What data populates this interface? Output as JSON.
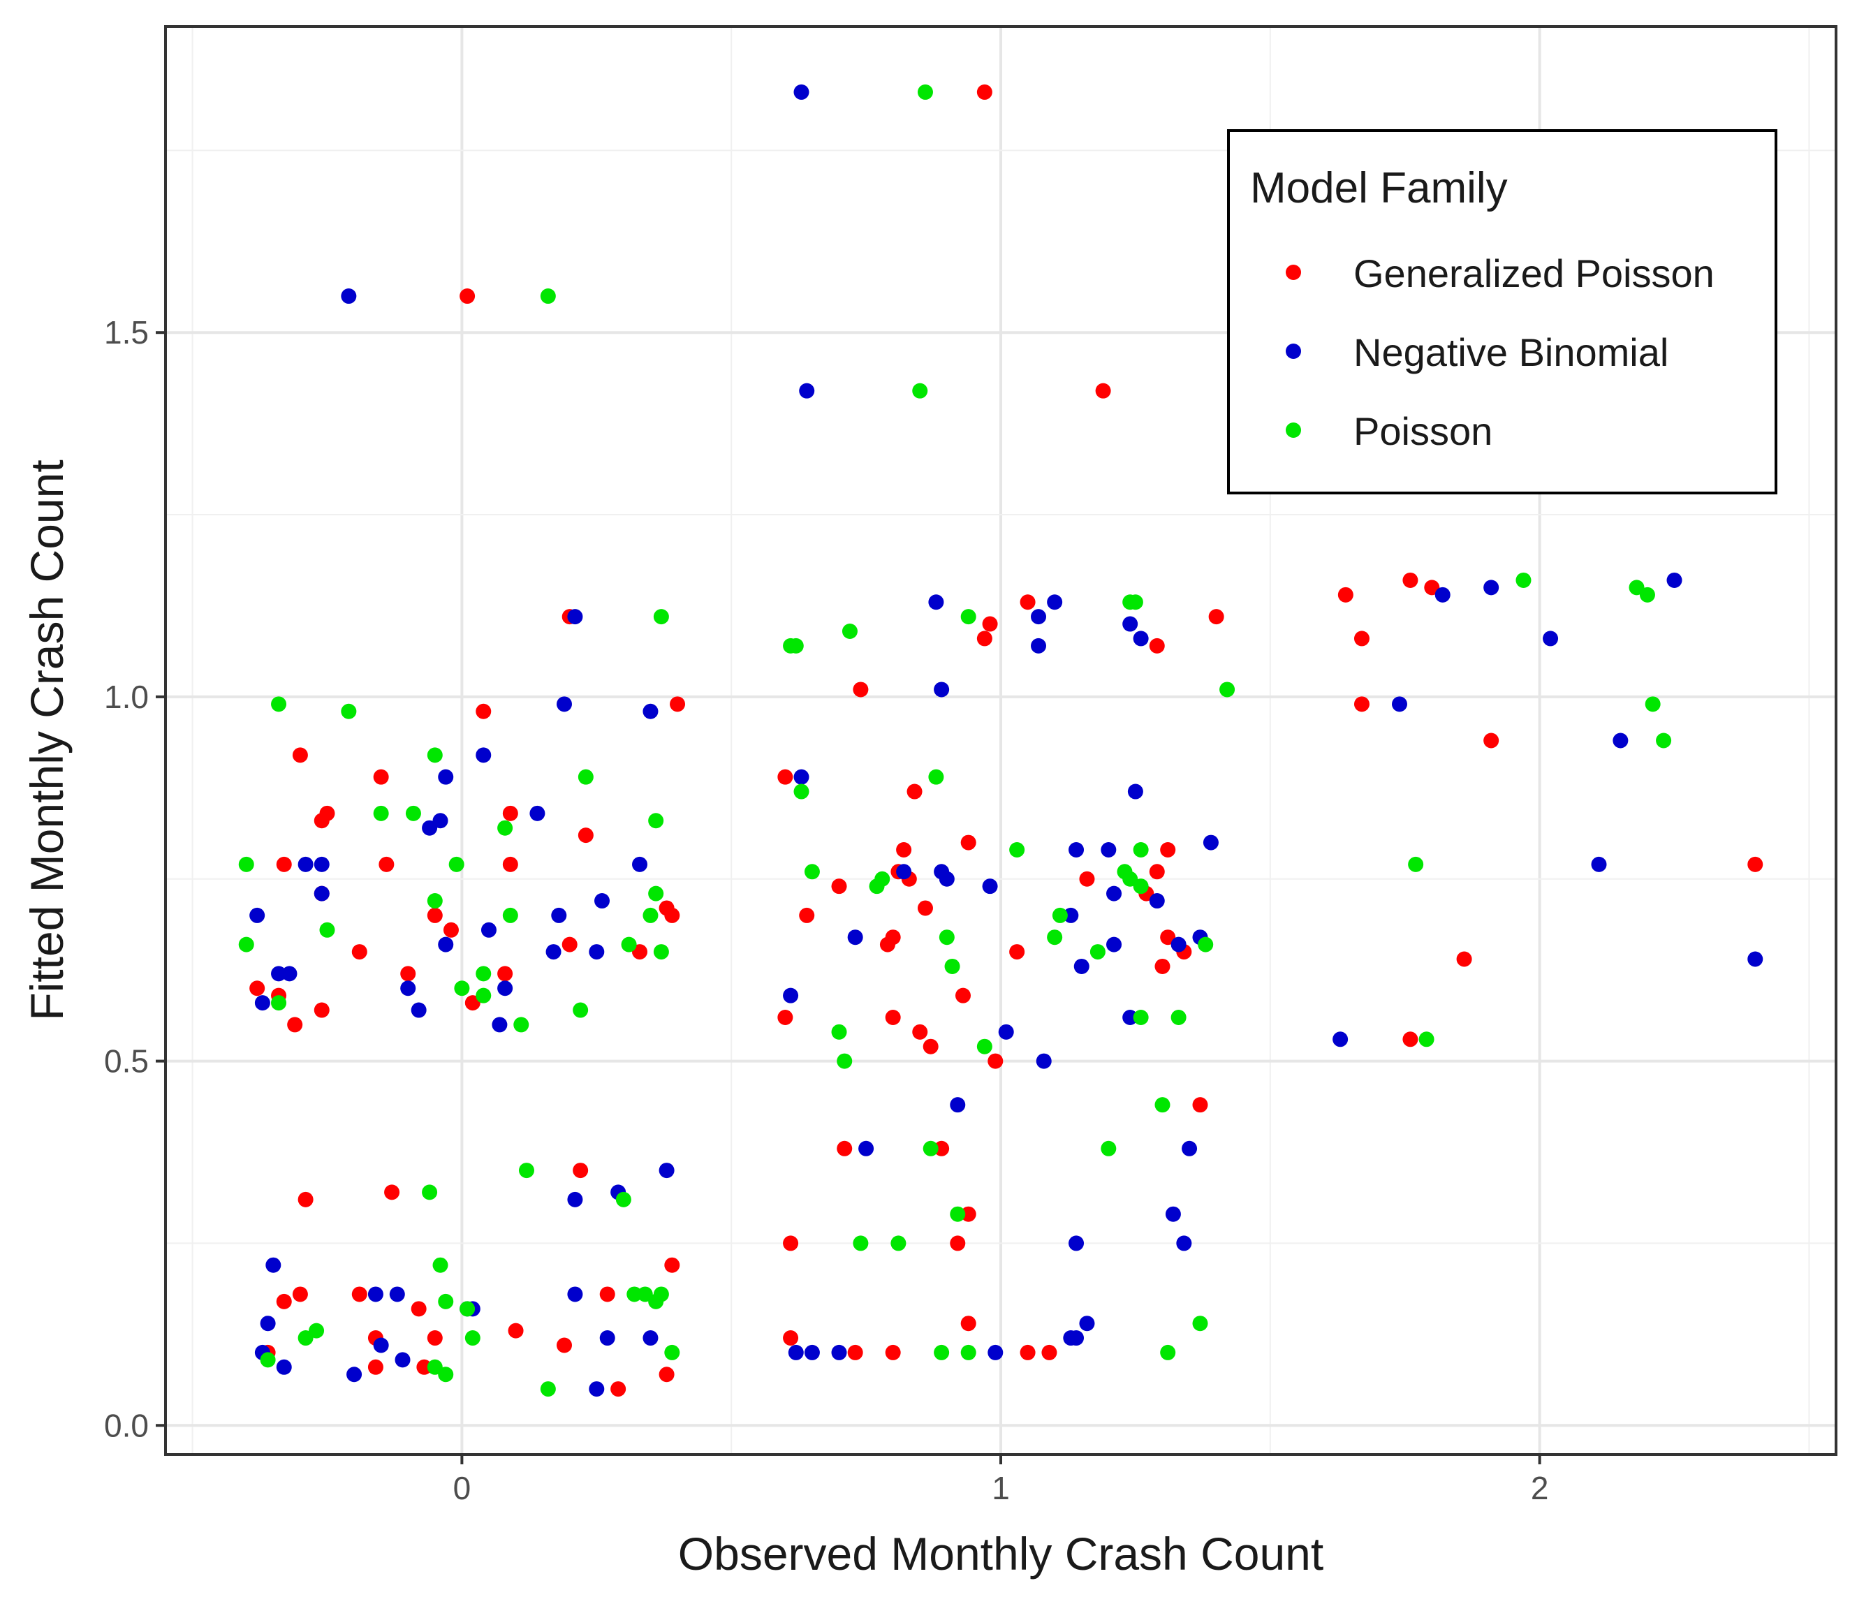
{
  "chart_data": {
    "type": "scatter",
    "title": "",
    "xlabel": "Observed Monthly Crash Count",
    "ylabel": "Fitted Monthly Crash Count",
    "xlim": [
      -0.55,
      2.55
    ],
    "ylim": [
      -0.04,
      1.92
    ],
    "x_ticks": [
      0,
      1,
      2
    ],
    "y_ticks": [
      0.0,
      0.5,
      1.0,
      1.5
    ],
    "x_tick_labels": [
      "0",
      "1",
      "2"
    ],
    "y_tick_labels": [
      "0.0",
      "0.5",
      "1.0",
      "1.5"
    ],
    "grid": true,
    "legend": {
      "title": "Model Family",
      "position": "top-right",
      "entries": [
        "Generalized Poisson",
        "Negative Binomial",
        "Poisson"
      ]
    },
    "series": [
      {
        "name": "Generalized Poisson",
        "color": "#ff0000",
        "points": [
          [
            0.01,
            1.55
          ],
          [
            0.97,
            1.83
          ],
          [
            1.19,
            1.42
          ],
          [
            0.2,
            1.11
          ],
          [
            0.04,
            0.98
          ],
          [
            0.4,
            0.99
          ],
          [
            -0.3,
            0.92
          ],
          [
            -0.15,
            0.89
          ],
          [
            -0.25,
            0.84
          ],
          [
            -0.26,
            0.83
          ],
          [
            0.09,
            0.84
          ],
          [
            0.23,
            0.81
          ],
          [
            -0.33,
            0.77
          ],
          [
            -0.14,
            0.77
          ],
          [
            0.09,
            0.77
          ],
          [
            -0.26,
            0.73
          ],
          [
            -0.05,
            0.7
          ],
          [
            0.39,
            0.7
          ],
          [
            0.2,
            0.66
          ],
          [
            0.33,
            0.65
          ],
          [
            -0.19,
            0.65
          ],
          [
            -0.1,
            0.62
          ],
          [
            0.08,
            0.62
          ],
          [
            -0.38,
            0.6
          ],
          [
            -0.34,
            0.59
          ],
          [
            0.02,
            0.58
          ],
          [
            -0.26,
            0.57
          ],
          [
            -0.31,
            0.55
          ],
          [
            -0.02,
            0.68
          ],
          [
            0.38,
            0.71
          ],
          [
            -0.29,
            0.31
          ],
          [
            -0.13,
            0.32
          ],
          [
            0.22,
            0.35
          ],
          [
            -0.3,
            0.18
          ],
          [
            -0.19,
            0.18
          ],
          [
            0.27,
            0.18
          ],
          [
            -0.33,
            0.17
          ],
          [
            -0.08,
            0.16
          ],
          [
            0.1,
            0.13
          ],
          [
            -0.05,
            0.12
          ],
          [
            0.19,
            0.11
          ],
          [
            -0.16,
            0.12
          ],
          [
            -0.36,
            0.1
          ],
          [
            -0.16,
            0.08
          ],
          [
            -0.07,
            0.08
          ],
          [
            0.29,
            0.05
          ],
          [
            0.38,
            0.07
          ],
          [
            0.39,
            0.22
          ],
          [
            1.05,
            1.13
          ],
          [
            1.4,
            1.11
          ],
          [
            0.98,
            1.1
          ],
          [
            0.97,
            1.08
          ],
          [
            1.29,
            1.07
          ],
          [
            0.74,
            1.01
          ],
          [
            0.6,
            0.89
          ],
          [
            0.84,
            0.87
          ],
          [
            0.82,
            0.79
          ],
          [
            0.94,
            0.8
          ],
          [
            1.31,
            0.79
          ],
          [
            0.83,
            0.75
          ],
          [
            0.81,
            0.76
          ],
          [
            1.16,
            0.75
          ],
          [
            1.29,
            0.76
          ],
          [
            0.7,
            0.74
          ],
          [
            1.27,
            0.73
          ],
          [
            0.86,
            0.71
          ],
          [
            0.64,
            0.7
          ],
          [
            0.8,
            0.67
          ],
          [
            0.79,
            0.66
          ],
          [
            1.03,
            0.65
          ],
          [
            1.34,
            0.65
          ],
          [
            1.31,
            0.67
          ],
          [
            1.3,
            0.63
          ],
          [
            0.93,
            0.59
          ],
          [
            0.6,
            0.56
          ],
          [
            0.8,
            0.56
          ],
          [
            0.85,
            0.54
          ],
          [
            0.87,
            0.52
          ],
          [
            0.99,
            0.5
          ],
          [
            1.37,
            0.44
          ],
          [
            0.71,
            0.38
          ],
          [
            0.89,
            0.38
          ],
          [
            0.94,
            0.29
          ],
          [
            0.61,
            0.25
          ],
          [
            0.92,
            0.25
          ],
          [
            0.94,
            0.14
          ],
          [
            0.61,
            0.12
          ],
          [
            0.73,
            0.1
          ],
          [
            0.8,
            0.1
          ],
          [
            1.05,
            0.1
          ],
          [
            1.09,
            0.1
          ],
          [
            1.64,
            1.14
          ],
          [
            1.76,
            1.16
          ],
          [
            1.8,
            1.15
          ],
          [
            1.67,
            1.08
          ],
          [
            1.67,
            0.99
          ],
          [
            1.91,
            0.94
          ],
          [
            1.76,
            0.53
          ],
          [
            2.4,
            0.77
          ],
          [
            1.86,
            0.64
          ]
        ]
      },
      {
        "name": "Negative Binomial",
        "color": "#0000cc",
        "points": [
          [
            -0.21,
            1.55
          ],
          [
            0.63,
            1.83
          ],
          [
            0.64,
            1.42
          ],
          [
            0.21,
            1.11
          ],
          [
            0.19,
            0.99
          ],
          [
            0.35,
            0.98
          ],
          [
            0.04,
            0.92
          ],
          [
            -0.03,
            0.89
          ],
          [
            0.14,
            0.84
          ],
          [
            -0.04,
            0.83
          ],
          [
            -0.06,
            0.82
          ],
          [
            -0.26,
            0.77
          ],
          [
            -0.29,
            0.77
          ],
          [
            0.33,
            0.77
          ],
          [
            -0.26,
            0.73
          ],
          [
            0.26,
            0.72
          ],
          [
            -0.38,
            0.7
          ],
          [
            0.18,
            0.7
          ],
          [
            0.05,
            0.68
          ],
          [
            -0.03,
            0.66
          ],
          [
            0.17,
            0.65
          ],
          [
            0.25,
            0.65
          ],
          [
            -0.34,
            0.62
          ],
          [
            -0.32,
            0.62
          ],
          [
            -0.1,
            0.6
          ],
          [
            0.08,
            0.6
          ],
          [
            -0.37,
            0.58
          ],
          [
            -0.08,
            0.57
          ],
          [
            0.07,
            0.55
          ],
          [
            0.29,
            0.32
          ],
          [
            0.21,
            0.31
          ],
          [
            0.38,
            0.35
          ],
          [
            -0.35,
            0.22
          ],
          [
            -0.16,
            0.18
          ],
          [
            -0.12,
            0.18
          ],
          [
            0.21,
            0.18
          ],
          [
            0.01,
            0.16
          ],
          [
            0.02,
            0.16
          ],
          [
            -0.36,
            0.14
          ],
          [
            0.27,
            0.12
          ],
          [
            -0.15,
            0.11
          ],
          [
            0.35,
            0.12
          ],
          [
            -0.37,
            0.1
          ],
          [
            -0.11,
            0.09
          ],
          [
            -0.2,
            0.07
          ],
          [
            0.25,
            0.05
          ],
          [
            -0.33,
            0.08
          ],
          [
            0.88,
            1.13
          ],
          [
            1.1,
            1.13
          ],
          [
            1.07,
            1.11
          ],
          [
            1.24,
            1.1
          ],
          [
            1.26,
            1.08
          ],
          [
            1.07,
            1.07
          ],
          [
            0.89,
            1.01
          ],
          [
            0.63,
            0.89
          ],
          [
            1.25,
            0.87
          ],
          [
            1.39,
            0.8
          ],
          [
            1.14,
            0.79
          ],
          [
            1.2,
            0.79
          ],
          [
            0.82,
            0.76
          ],
          [
            0.89,
            0.76
          ],
          [
            0.9,
            0.75
          ],
          [
            0.98,
            0.74
          ],
          [
            1.21,
            0.73
          ],
          [
            1.29,
            0.72
          ],
          [
            1.13,
            0.7
          ],
          [
            0.73,
            0.67
          ],
          [
            1.21,
            0.66
          ],
          [
            1.33,
            0.66
          ],
          [
            1.37,
            0.67
          ],
          [
            1.15,
            0.63
          ],
          [
            0.61,
            0.59
          ],
          [
            1.24,
            0.56
          ],
          [
            1.01,
            0.54
          ],
          [
            1.08,
            0.5
          ],
          [
            0.92,
            0.44
          ],
          [
            0.75,
            0.38
          ],
          [
            1.35,
            0.38
          ],
          [
            1.32,
            0.29
          ],
          [
            1.14,
            0.25
          ],
          [
            1.34,
            0.25
          ],
          [
            0.62,
            0.1
          ],
          [
            0.65,
            0.1
          ],
          [
            0.7,
            0.1
          ],
          [
            0.99,
            0.1
          ],
          [
            1.14,
            0.12
          ],
          [
            1.16,
            0.14
          ],
          [
            1.13,
            0.12
          ],
          [
            1.82,
            1.14
          ],
          [
            1.91,
            1.15
          ],
          [
            2.25,
            1.16
          ],
          [
            2.02,
            1.08
          ],
          [
            1.74,
            0.99
          ],
          [
            2.15,
            0.94
          ],
          [
            2.11,
            0.77
          ],
          [
            1.63,
            0.53
          ],
          [
            2.4,
            0.64
          ]
        ]
      },
      {
        "name": "Poisson",
        "color": "#00e600",
        "points": [
          [
            0.16,
            1.55
          ],
          [
            0.86,
            1.83
          ],
          [
            0.85,
            1.42
          ],
          [
            0.37,
            1.11
          ],
          [
            -0.34,
            0.99
          ],
          [
            -0.21,
            0.98
          ],
          [
            -0.05,
            0.92
          ],
          [
            0.23,
            0.89
          ],
          [
            -0.15,
            0.84
          ],
          [
            -0.09,
            0.84
          ],
          [
            0.36,
            0.83
          ],
          [
            0.08,
            0.82
          ],
          [
            -0.4,
            0.77
          ],
          [
            -0.01,
            0.77
          ],
          [
            0.36,
            0.73
          ],
          [
            -0.05,
            0.72
          ],
          [
            -0.25,
            0.68
          ],
          [
            0.09,
            0.7
          ],
          [
            0.35,
            0.7
          ],
          [
            0.31,
            0.66
          ],
          [
            0.37,
            0.65
          ],
          [
            -0.4,
            0.66
          ],
          [
            0.04,
            0.62
          ],
          [
            0.04,
            0.59
          ],
          [
            -0.34,
            0.58
          ],
          [
            0.0,
            0.6
          ],
          [
            0.11,
            0.55
          ],
          [
            0.22,
            0.57
          ],
          [
            -0.06,
            0.32
          ],
          [
            0.12,
            0.35
          ],
          [
            0.3,
            0.31
          ],
          [
            -0.04,
            0.22
          ],
          [
            -0.03,
            0.17
          ],
          [
            0.34,
            0.18
          ],
          [
            0.37,
            0.18
          ],
          [
            0.36,
            0.17
          ],
          [
            0.01,
            0.16
          ],
          [
            -0.27,
            0.13
          ],
          [
            -0.29,
            0.12
          ],
          [
            0.02,
            0.12
          ],
          [
            0.39,
            0.1
          ],
          [
            -0.36,
            0.09
          ],
          [
            -0.05,
            0.08
          ],
          [
            -0.03,
            0.07
          ],
          [
            0.16,
            0.05
          ],
          [
            0.32,
            0.18
          ],
          [
            0.94,
            1.11
          ],
          [
            0.72,
            1.09
          ],
          [
            0.62,
            1.07
          ],
          [
            0.61,
            1.07
          ],
          [
            1.24,
            1.13
          ],
          [
            1.25,
            1.13
          ],
          [
            1.42,
            1.01
          ],
          [
            0.88,
            0.89
          ],
          [
            0.63,
            0.87
          ],
          [
            1.03,
            0.79
          ],
          [
            1.26,
            0.79
          ],
          [
            0.78,
            0.75
          ],
          [
            0.77,
            0.74
          ],
          [
            1.23,
            0.76
          ],
          [
            1.24,
            0.75
          ],
          [
            1.26,
            0.74
          ],
          [
            0.65,
            0.76
          ],
          [
            1.11,
            0.7
          ],
          [
            1.1,
            0.67
          ],
          [
            1.38,
            0.66
          ],
          [
            0.9,
            0.67
          ],
          [
            1.18,
            0.65
          ],
          [
            0.91,
            0.63
          ],
          [
            0.7,
            0.54
          ],
          [
            1.26,
            0.56
          ],
          [
            1.33,
            0.56
          ],
          [
            0.97,
            0.52
          ],
          [
            0.71,
            0.5
          ],
          [
            1.3,
            0.44
          ],
          [
            0.87,
            0.38
          ],
          [
            1.2,
            0.38
          ],
          [
            0.92,
            0.29
          ],
          [
            0.74,
            0.25
          ],
          [
            0.81,
            0.25
          ],
          [
            0.89,
            0.1
          ],
          [
            0.94,
            0.1
          ],
          [
            1.31,
            0.1
          ],
          [
            1.37,
            0.14
          ],
          [
            1.97,
            1.16
          ],
          [
            2.18,
            1.15
          ],
          [
            2.2,
            1.14
          ],
          [
            2.21,
            0.99
          ],
          [
            2.23,
            0.94
          ],
          [
            1.77,
            0.77
          ],
          [
            1.79,
            0.53
          ]
        ]
      }
    ]
  }
}
